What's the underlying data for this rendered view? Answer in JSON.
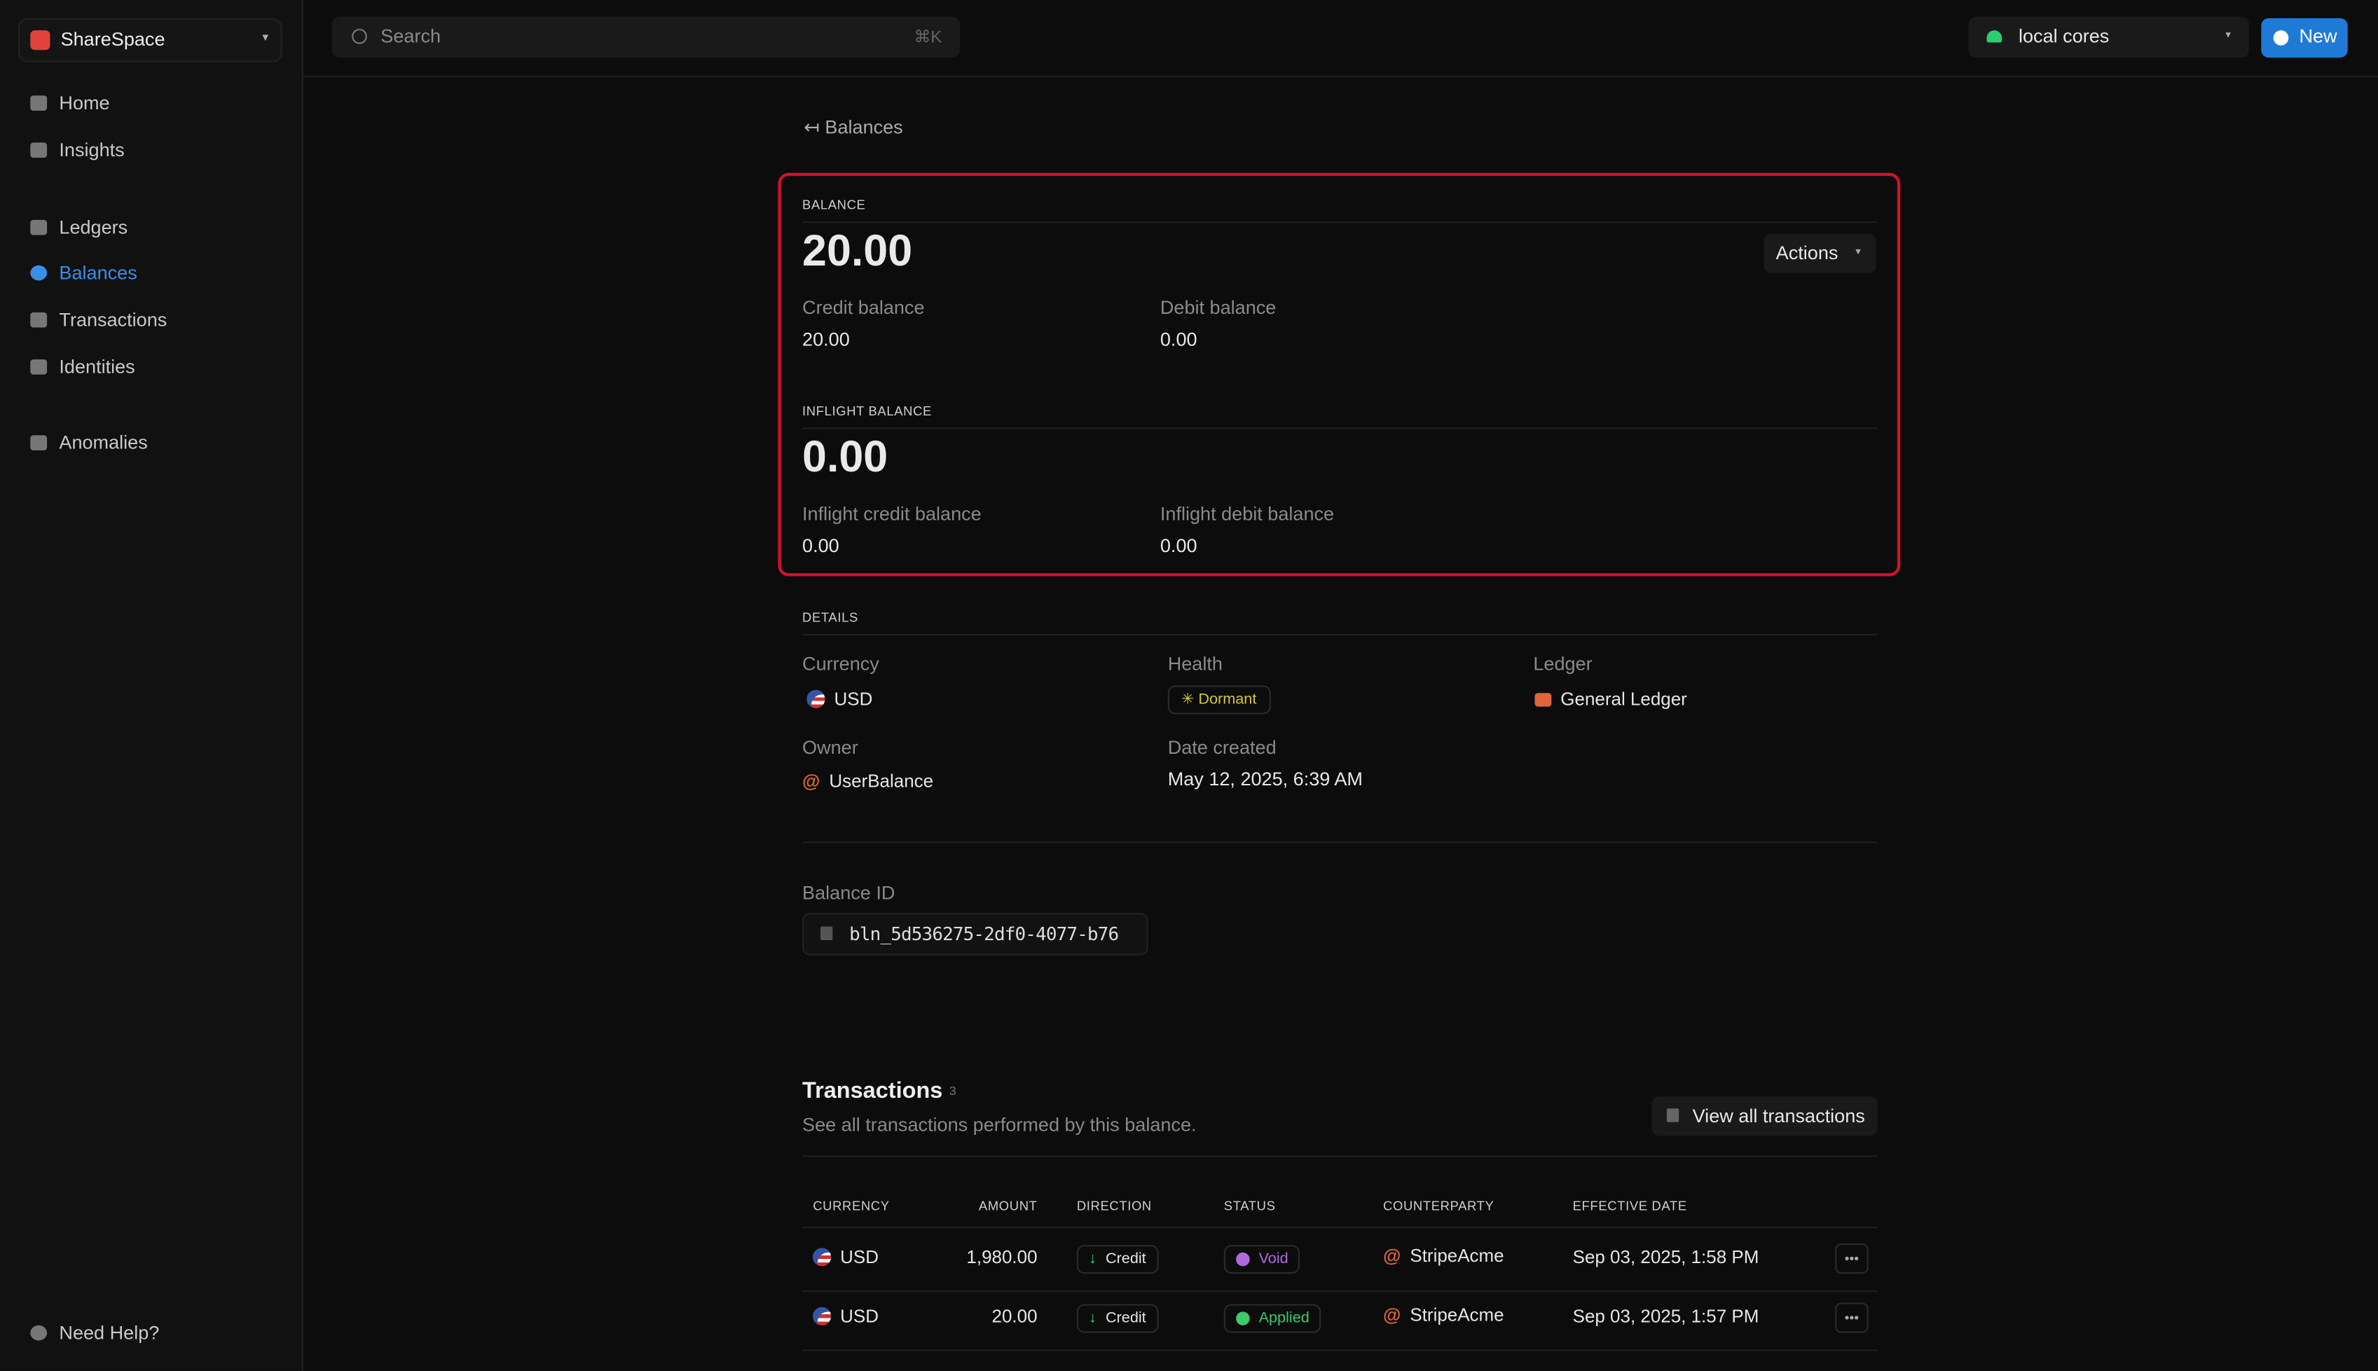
{
  "sidebar": {
    "workspace": "ShareSpace",
    "nav": [
      "Home",
      "Insights",
      "Ledgers",
      "Balances",
      "Transactions",
      "Identities",
      "Anomalies"
    ],
    "help": "Need Help?"
  },
  "topbar": {
    "search": "Search",
    "shortcut": "⌘K",
    "environment": "local cores",
    "new_button": "New"
  },
  "breadcrumb": "Balances",
  "balance": {
    "label": "BALANCE",
    "amount": "20.00",
    "actions": "Actions",
    "credit_label": "Credit balance",
    "credit": "20.00",
    "debit_label": "Debit balance",
    "debit": "0.00"
  },
  "inflight": {
    "label": "INFLIGHT BALANCE",
    "amount": "0.00",
    "credit_label": "Inflight credit balance",
    "credit": "0.00",
    "debit_label": "Inflight debit balance",
    "debit": "0.00"
  },
  "details": {
    "label": "DETAILS",
    "currency_label": "Currency",
    "currency": "USD",
    "health_label": "Health",
    "health": "Dormant",
    "ledger_label": "Ledger",
    "ledger": "General Ledger",
    "owner_label": "Owner",
    "owner": "UserBalance",
    "date_label": "Date created",
    "date": "May 12, 2025, 6:39 AM",
    "id_label": "Balance ID",
    "id": "bln_5d536275-2df0-4077-b76"
  },
  "transactions": {
    "title": "Transactions",
    "count": "3",
    "subtitle": "See all transactions performed by this balance.",
    "view_all": "View all transactions",
    "columns": [
      "CURRENCY",
      "AMOUNT",
      "DIRECTION",
      "STATUS",
      "COUNTERPARTY",
      "EFFECTIVE DATE"
    ],
    "rows": [
      [
        "USD",
        "1,980.00",
        "Credit",
        "Void",
        "StripeAcme",
        "Sep 03, 2025, 1:58 PM"
      ],
      [
        "USD",
        "20.00",
        "Credit",
        "Applied",
        "StripeAcme",
        "Sep 03, 2025, 1:57 PM"
      ]
    ]
  }
}
